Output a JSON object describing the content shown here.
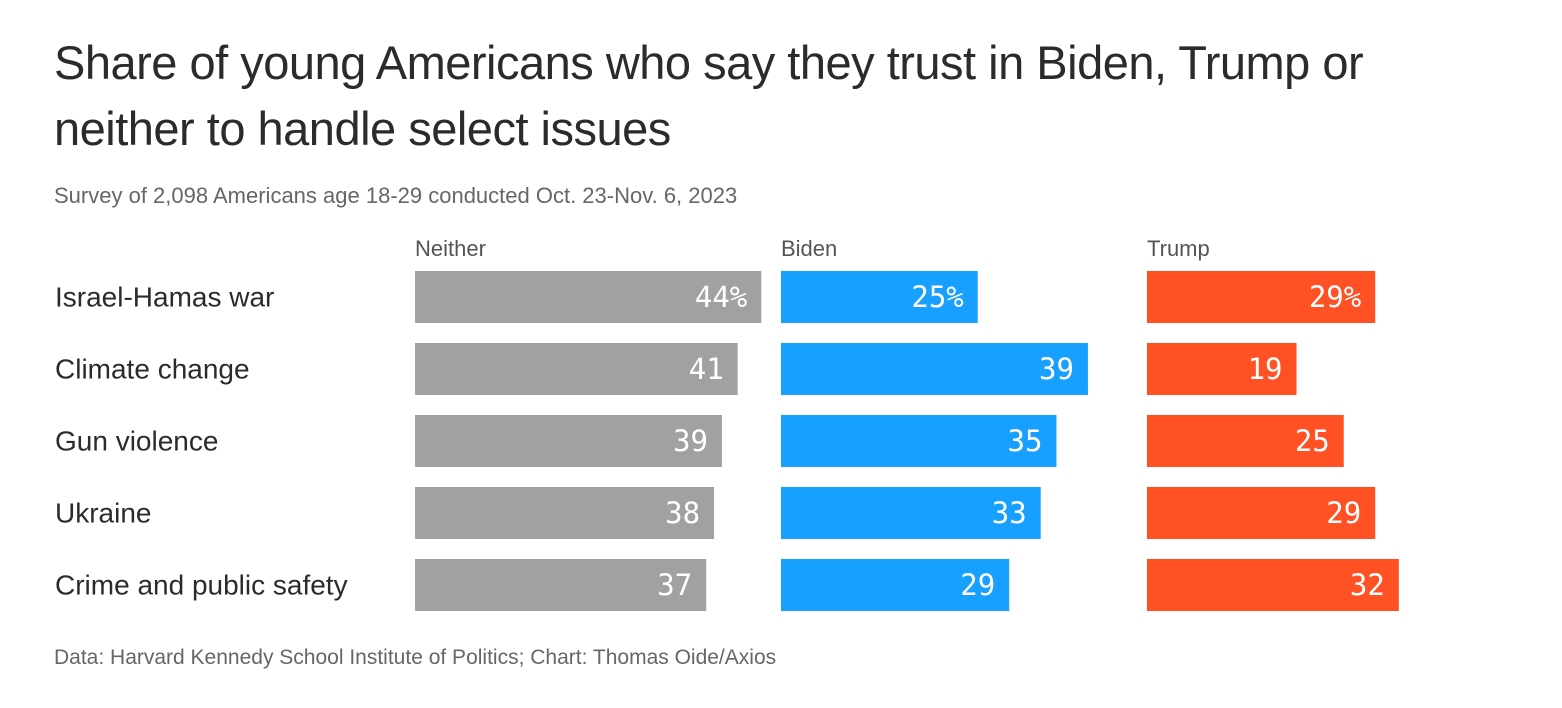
{
  "header": {
    "title": "Share of young Americans who say they trust in Biden, Trump or neither to handle select issues",
    "subtitle": "Survey of 2,098 Americans age 18-29 conducted Oct. 23-Nov. 6, 2023"
  },
  "footer": {
    "source": "Data: Harvard Kennedy School Institute of Politics; Chart: Thomas Oide/Axios"
  },
  "chart_data": {
    "type": "bar",
    "orientation": "horizontal",
    "layout": "small-multiples",
    "categories": [
      "Israel-Hamas war",
      "Climate change",
      "Gun violence",
      "Ukraine",
      "Crime and public safety"
    ],
    "series": [
      {
        "name": "Neither",
        "color": "#a0a1a0",
        "values": [
          44,
          41,
          39,
          38,
          37
        ],
        "labels": [
          "44%",
          "41",
          "39",
          "38",
          "37"
        ]
      },
      {
        "name": "Biden",
        "color": "#17a0ff",
        "values": [
          25,
          39,
          35,
          33,
          29
        ],
        "labels": [
          "25%",
          "39",
          "35",
          "33",
          "29"
        ]
      },
      {
        "name": "Trump",
        "color": "#ff5124",
        "values": [
          29,
          19,
          25,
          29,
          32
        ],
        "labels": [
          "29%",
          "19",
          "25",
          "29",
          "32"
        ]
      }
    ],
    "unit": "%",
    "grid": false
  }
}
